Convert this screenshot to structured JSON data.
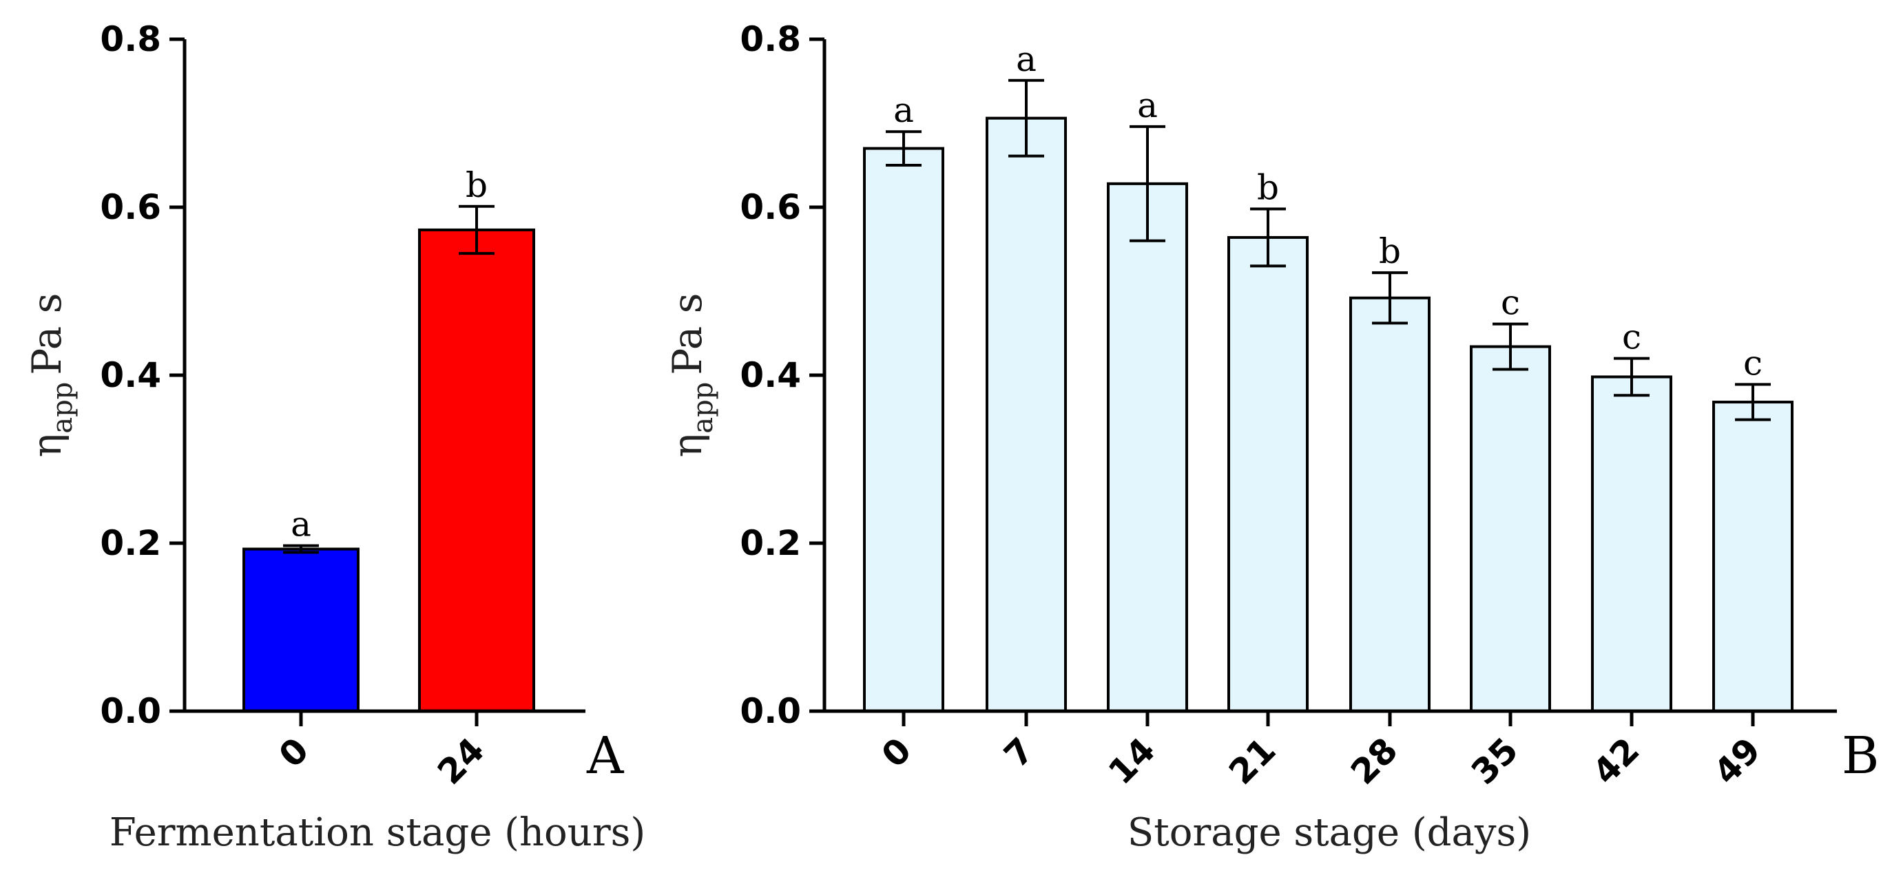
{
  "chart_data": [
    {
      "type": "bar",
      "panel_label": "A",
      "categories": [
        "0",
        "24"
      ],
      "values": [
        0.193,
        0.573
      ],
      "errors": [
        0.004,
        0.028
      ],
      "significance": [
        "a",
        "b"
      ],
      "bar_colors": [
        "#0000ff",
        "#ff0000"
      ],
      "xlabel": "Fermentation stage (hours)",
      "ylabel": {
        "symbol": "η",
        "subscript": "app",
        "unit": "Pa s"
      },
      "ylim": [
        0,
        0.8
      ],
      "yticks": [
        "0.0",
        "0.2",
        "0.4",
        "0.6",
        "0.8"
      ],
      "grid": false
    },
    {
      "type": "bar",
      "panel_label": "B",
      "categories": [
        "0",
        "7",
        "14",
        "21",
        "28",
        "35",
        "42",
        "49"
      ],
      "values": [
        0.67,
        0.706,
        0.628,
        0.564,
        0.492,
        0.434,
        0.398,
        0.368
      ],
      "errors": [
        0.02,
        0.045,
        0.068,
        0.034,
        0.03,
        0.027,
        0.022,
        0.021
      ],
      "significance": [
        "a",
        "a",
        "a",
        "b",
        "b",
        "c",
        "c",
        "c"
      ],
      "bar_colors": [
        "#e4f6fd",
        "#e4f6fd",
        "#e4f6fd",
        "#e4f6fd",
        "#e4f6fd",
        "#e4f6fd",
        "#e4f6fd",
        "#e4f6fd"
      ],
      "xlabel": "Storage stage (days)",
      "ylabel": {
        "symbol": "η",
        "subscript": "app",
        "unit": "Pa s"
      },
      "ylim": [
        0,
        0.8
      ],
      "yticks": [
        "0.0",
        "0.2",
        "0.4",
        "0.6",
        "0.8"
      ],
      "grid": false
    }
  ]
}
